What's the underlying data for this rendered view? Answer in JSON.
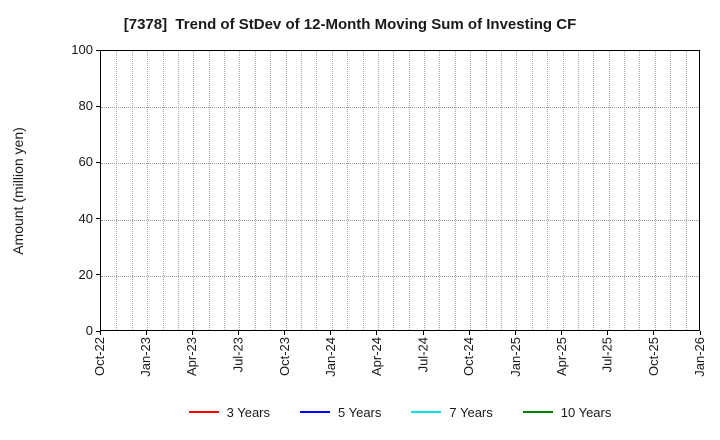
{
  "chart_data": {
    "type": "line",
    "title": "[7378]  Trend of StDev of 12-Month Moving Sum of Investing CF",
    "xlabel": "",
    "ylabel": "Amount (million yen)",
    "ylim": [
      0,
      100
    ],
    "yticks": [
      0,
      20,
      40,
      60,
      80,
      100
    ],
    "x_tick_labels": [
      "Oct-22",
      "Jan-23",
      "Apr-23",
      "Jul-23",
      "Oct-23",
      "Jan-24",
      "Apr-24",
      "Jul-24",
      "Oct-24",
      "Jan-25",
      "Apr-25",
      "Jul-25",
      "Oct-25",
      "Jan-26"
    ],
    "months_per_labeled_tick": 3,
    "grid": true,
    "grid_style": "dotted",
    "legend_position": "bottom",
    "series": [
      {
        "name": "3 Years",
        "color": "#ff0000",
        "values": []
      },
      {
        "name": "5 Years",
        "color": "#0000ff",
        "values": []
      },
      {
        "name": "7 Years",
        "color": "#00e5e5",
        "values": []
      },
      {
        "name": "10 Years",
        "color": "#008000",
        "values": []
      }
    ],
    "note": "plot area is empty - no data lines visible within the axis range"
  }
}
